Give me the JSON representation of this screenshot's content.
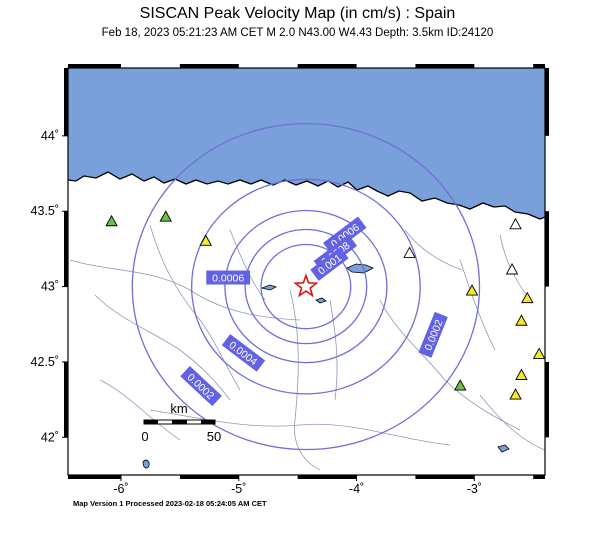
{
  "header": {
    "title": "SISCAN Peak Velocity Map (in cm/s) : Spain",
    "subtitle": "Feb 18, 2023 05:21:23 AM CET    M 2.0    N43.00 W4.43    Depth: 3.5km    ID:24120"
  },
  "map": {
    "lon_range": [
      -6.45,
      -2.4
    ],
    "lat_range": [
      41.75,
      44.45
    ],
    "lon_ticks": [
      {
        "value": -6,
        "label": "-6˚"
      },
      {
        "value": -5,
        "label": "-5˚"
      },
      {
        "value": -4,
        "label": "-4˚"
      },
      {
        "value": -3,
        "label": "-3˚"
      }
    ],
    "lat_ticks": [
      {
        "value": 44,
        "label": "44˚"
      },
      {
        "value": 43.5,
        "label": "43.5˚"
      },
      {
        "value": 43,
        "label": "43˚"
      },
      {
        "value": 42.5,
        "label": "42.5˚"
      },
      {
        "value": 42,
        "label": "42˚"
      }
    ],
    "epicenter": {
      "lat": 43.0,
      "lon": -4.43
    },
    "contours": [
      {
        "value": "0.0002",
        "radius_km": 120
      },
      {
        "value": "0.0004",
        "radius_km": 79
      },
      {
        "value": "0.0006",
        "radius_km": 56
      },
      {
        "value": "0.0008",
        "radius_km": 42
      },
      {
        "value": "0.001",
        "radius_km": 31
      }
    ],
    "contour_labels": [
      {
        "text": "0.0006",
        "lat": 43.06,
        "lon": -5.09,
        "angle": 0
      },
      {
        "text": "0.0006",
        "lat": 43.34,
        "lon": -4.1,
        "angle": -37
      },
      {
        "text": "0.0008",
        "lat": 43.22,
        "lon": -4.18,
        "angle": -37
      },
      {
        "text": "0.001",
        "lat": 43.15,
        "lon": -4.23,
        "angle": -37
      },
      {
        "text": "0.0004",
        "lat": 42.56,
        "lon": -4.96,
        "angle": 37
      },
      {
        "text": "0.0002",
        "lat": 42.34,
        "lon": -5.32,
        "angle": 43
      },
      {
        "text": "0.0002",
        "lat": 42.68,
        "lon": -3.35,
        "angle": -68
      }
    ],
    "stations": [
      {
        "lat": 43.43,
        "lon": -6.08,
        "status": "green"
      },
      {
        "lat": 43.46,
        "lon": -5.62,
        "status": "green"
      },
      {
        "lat": 43.3,
        "lon": -5.28,
        "status": "yellow"
      },
      {
        "lat": 43.22,
        "lon": -3.55,
        "status": "white"
      },
      {
        "lat": 43.41,
        "lon": -2.65,
        "status": "white"
      },
      {
        "lat": 43.11,
        "lon": -2.68,
        "status": "white"
      },
      {
        "lat": 42.97,
        "lon": -3.02,
        "status": "yellow"
      },
      {
        "lat": 42.92,
        "lon": -2.55,
        "status": "yellow"
      },
      {
        "lat": 42.77,
        "lon": -2.6,
        "status": "yellow"
      },
      {
        "lat": 42.55,
        "lon": -2.45,
        "status": "yellow"
      },
      {
        "lat": 42.41,
        "lon": -2.6,
        "status": "yellow"
      },
      {
        "lat": 42.34,
        "lon": -3.12,
        "status": "green"
      },
      {
        "lat": 42.28,
        "lon": -2.65,
        "status": "yellow"
      }
    ],
    "scale_bar": {
      "unit": "km",
      "start_label": "0",
      "end_label": "50"
    },
    "colors": {
      "sea": "#79a0da",
      "land": "#ffffff",
      "contour": "#6f6fd7",
      "label_bg": "#6262e2",
      "epicenter": "#dd1111",
      "station_green": "#6dbf4a",
      "station_yellow": "#f5e92a",
      "station_white": "#ffffff"
    }
  },
  "footer": {
    "text": "Map Version 1 Processed 2023-02-18 05:24:05 AM CET"
  }
}
